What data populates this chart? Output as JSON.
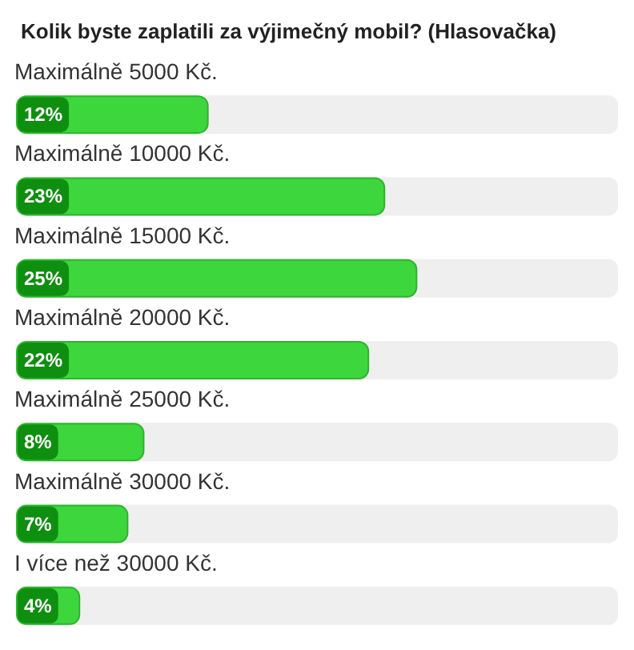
{
  "chart_data": {
    "type": "bar",
    "orientation": "horizontal",
    "title": "Kolik byste zaplatili za výjimečný mobil? (Hlasovačka)",
    "categories": [
      "Maximálně 5000 Kč.",
      "Maximálně 10000 Kč.",
      "Maximálně 15000 Kč.",
      "Maximálně 20000 Kč.",
      "Maximálně 25000 Kč.",
      "Maximálně 30000 Kč.",
      "I více než 30000 Kč."
    ],
    "values": [
      12,
      23,
      25,
      22,
      8,
      7,
      4
    ],
    "value_labels": [
      "12%",
      "23%",
      "25%",
      "22%",
      "8%",
      "7%",
      "4%"
    ],
    "color": "#3dd63d"
  }
}
